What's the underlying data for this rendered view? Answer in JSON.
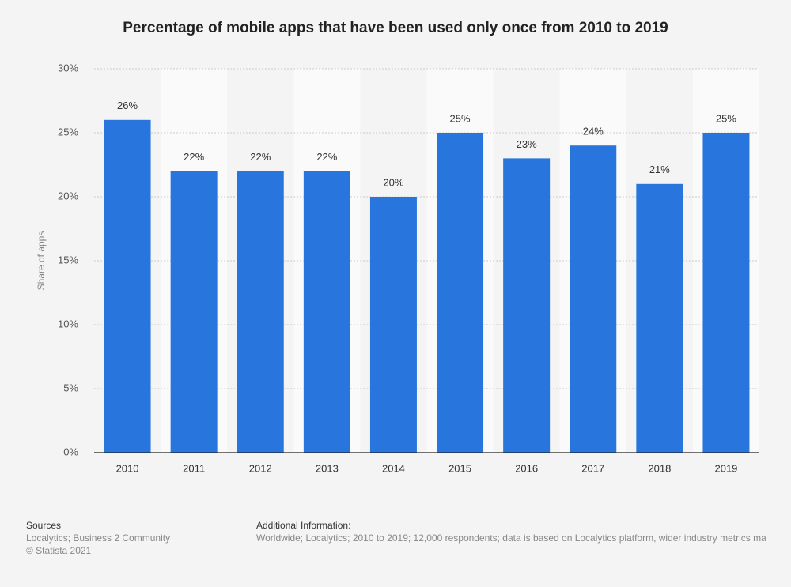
{
  "chart_data": {
    "type": "bar",
    "title": "Percentage of mobile apps that have been used only once from 2010 to 2019",
    "y_label": "Share of apps",
    "categories": [
      "2010",
      "2011",
      "2012",
      "2013",
      "2014",
      "2015",
      "2016",
      "2017",
      "2018",
      "2019"
    ],
    "values": [
      26,
      22,
      22,
      22,
      20,
      25,
      23,
      24,
      21,
      25
    ],
    "value_labels": [
      "26%",
      "22%",
      "22%",
      "22%",
      "20%",
      "25%",
      "23%",
      "24%",
      "21%",
      "25%"
    ],
    "color": "#2876dd",
    "ylim": [
      0,
      30
    ],
    "yticks": [
      {
        "value": 0,
        "label": "0%"
      },
      {
        "value": 5,
        "label": "5%"
      },
      {
        "value": 10,
        "label": "10%"
      },
      {
        "value": 15,
        "label": "15%"
      },
      {
        "value": 20,
        "label": "20%"
      },
      {
        "value": 25,
        "label": "25%"
      },
      {
        "value": 30,
        "label": "30%"
      }
    ],
    "grid": true
  },
  "footer": {
    "sources_title": "Sources",
    "sources": "Localytics; Business 2 Community",
    "copyright": "© Statista 2021",
    "info_title": "Additional Information:",
    "info": "Worldwide; Localytics; 2010 to 2019; 12,000 respondents; data is based on Localytics platform, wider industry metrics ma"
  }
}
